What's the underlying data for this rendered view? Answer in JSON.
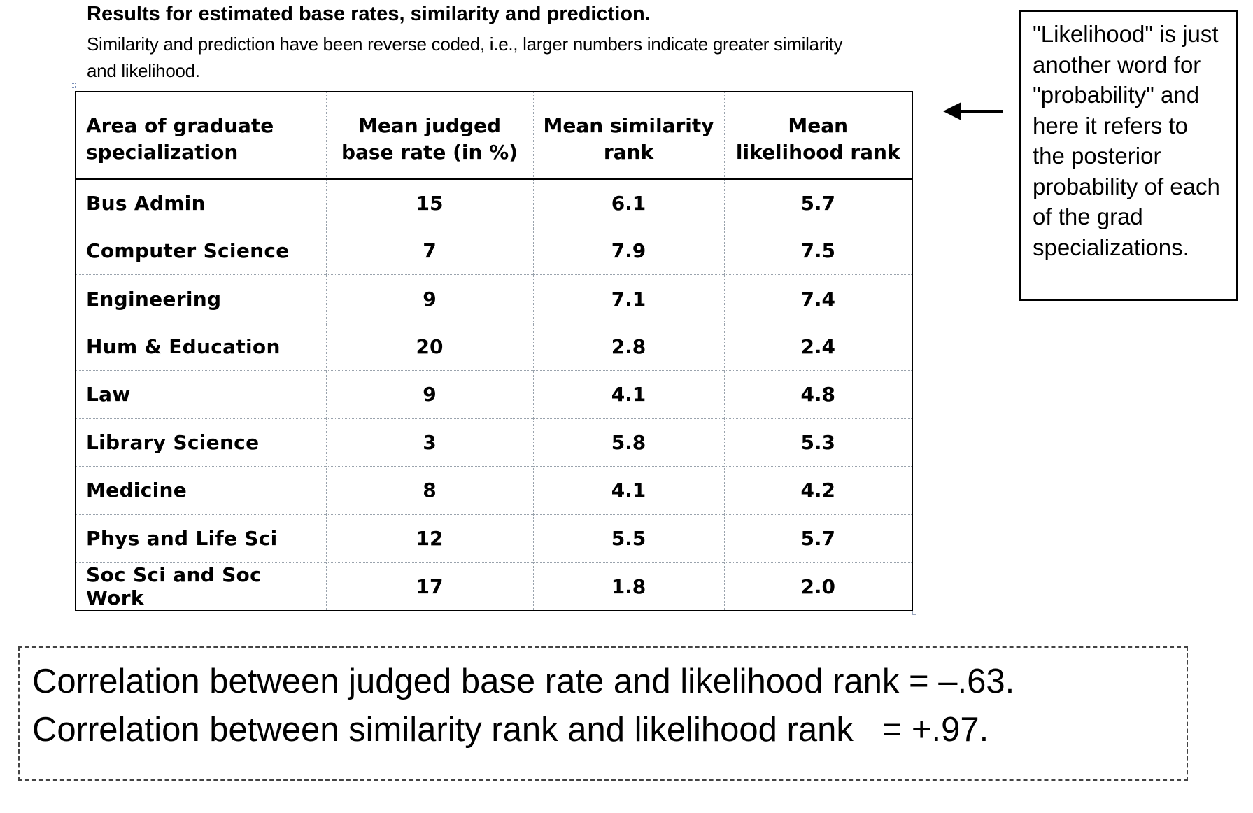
{
  "caption": {
    "title": "Results for estimated base rates, similarity and prediction.",
    "subtitle": "Similarity and prediction have been reverse coded, i.e., larger numbers indicate greater similarity and likelihood."
  },
  "table": {
    "headers": [
      "Area of graduate specialization",
      "Mean judged base rate (in %)",
      "Mean similarity rank",
      "Mean likelihood rank"
    ],
    "rows": [
      {
        "area": "Bus Admin",
        "base_rate": "15",
        "similarity": "6.1",
        "likelihood": "5.7"
      },
      {
        "area": "Computer Science",
        "base_rate": "7",
        "similarity": "7.9",
        "likelihood": "7.5"
      },
      {
        "area": "Engineering",
        "base_rate": "9",
        "similarity": "7.1",
        "likelihood": "7.4"
      },
      {
        "area": "Hum & Education",
        "base_rate": "20",
        "similarity": "2.8",
        "likelihood": "2.4"
      },
      {
        "area": "Law",
        "base_rate": "9",
        "similarity": "4.1",
        "likelihood": "4.8"
      },
      {
        "area": "Library Science",
        "base_rate": "3",
        "similarity": "5.8",
        "likelihood": "5.3"
      },
      {
        "area": "Medicine",
        "base_rate": "8",
        "similarity": "4.1",
        "likelihood": "4.2"
      },
      {
        "area": "Phys and Life Sci",
        "base_rate": "12",
        "similarity": "5.5",
        "likelihood": "5.7"
      },
      {
        "area": "Soc Sci and Soc Work",
        "base_rate": "17",
        "similarity": "1.8",
        "likelihood": "2.0"
      }
    ]
  },
  "note": {
    "text": "\"Likelihood\" is just another word for \"probability\" and here it refers to the posterior probability of each of the grad specializations."
  },
  "correlations": {
    "line1": "Correlation between judged base rate and likelihood rank = –.63.",
    "line2": "Correlation between similarity rank and likelihood rank   = +.97."
  },
  "icons": {
    "arrow": "left-arrow-icon"
  }
}
